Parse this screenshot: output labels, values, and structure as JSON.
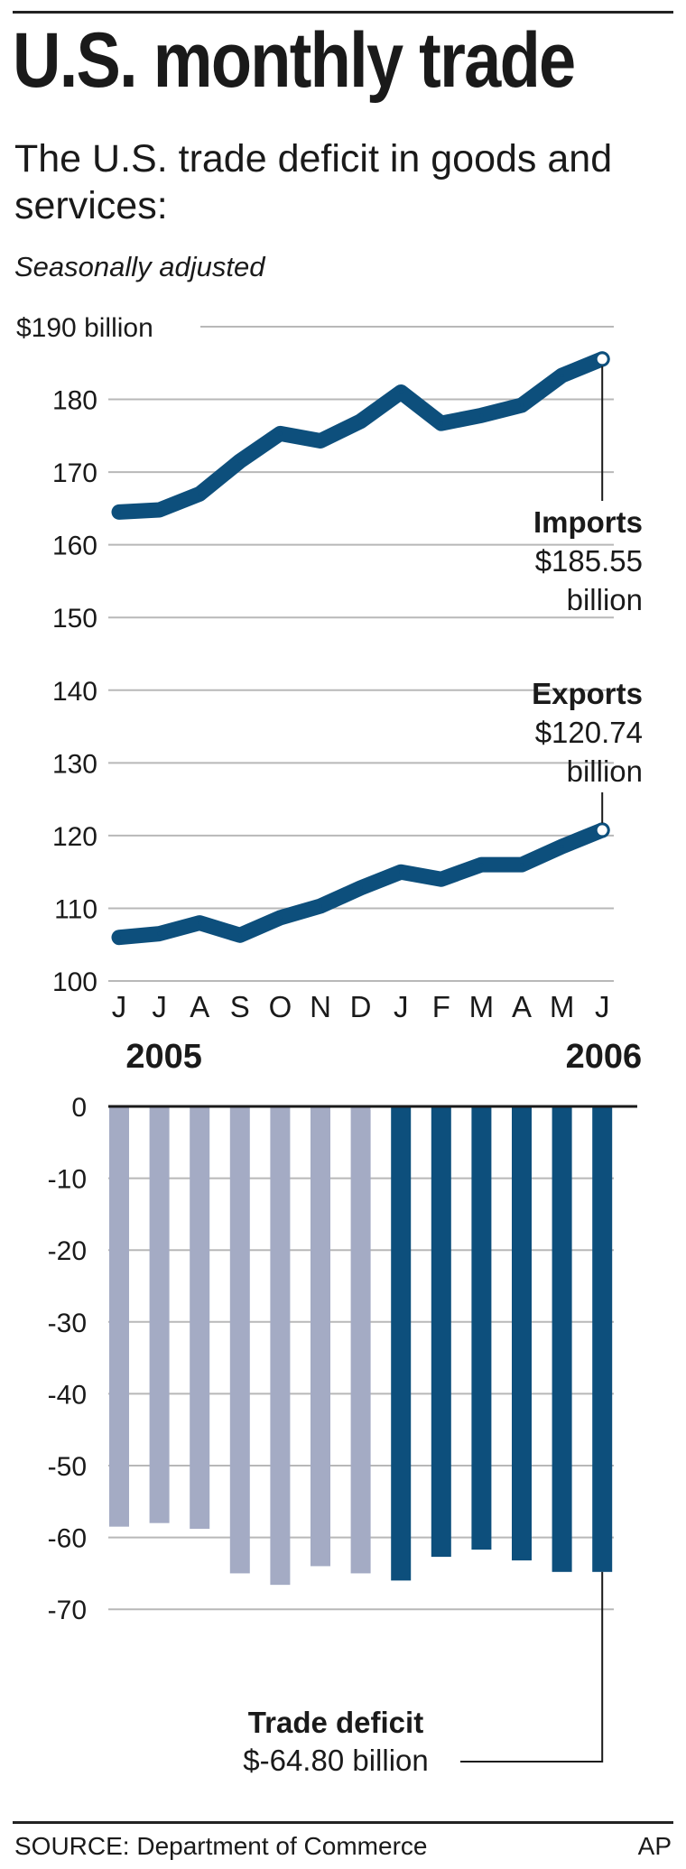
{
  "header": {
    "title": "U.S. monthly trade",
    "subtitle": "The U.S. trade deficit in goods and services:",
    "note": "Seasonally adjusted"
  },
  "chart_data": [
    {
      "type": "line",
      "title": "",
      "x": [
        "J",
        "J",
        "A",
        "S",
        "O",
        "N",
        "D",
        "J",
        "F",
        "M",
        "A",
        "M",
        "J"
      ],
      "years": [
        {
          "label": "2005",
          "at_index": 1
        },
        {
          "label": "2006",
          "at_index": 12
        }
      ],
      "ylim": [
        100,
        190
      ],
      "yticks": [
        {
          "value": 190,
          "label": "$190 billion"
        },
        {
          "value": 180,
          "label": "180"
        },
        {
          "value": 170,
          "label": "170"
        },
        {
          "value": 160,
          "label": "160"
        },
        {
          "value": 150,
          "label": "150"
        },
        {
          "value": 140,
          "label": "140"
        },
        {
          "value": 130,
          "label": "130"
        },
        {
          "value": 120,
          "label": "120"
        },
        {
          "value": 110,
          "label": "110"
        },
        {
          "value": 100,
          "label": "100"
        }
      ],
      "grid": true,
      "series": [
        {
          "name": "Imports",
          "values": [
            164.5,
            164.8,
            167.0,
            171.5,
            175.3,
            174.3,
            177.0,
            181.0,
            176.7,
            177.8,
            179.2,
            183.3,
            185.55
          ],
          "annotation": [
            "Imports",
            "$185.55",
            "billion"
          ]
        },
        {
          "name": "Exports",
          "values": [
            106.0,
            106.5,
            108.0,
            106.3,
            108.7,
            110.3,
            112.8,
            115.0,
            114.0,
            116.0,
            116.0,
            118.5,
            120.74
          ],
          "annotation": [
            "Exports",
            "$120.74",
            "billion"
          ]
        }
      ],
      "color": "#0d4f7c"
    },
    {
      "type": "bar",
      "title": "",
      "categories": [
        "J",
        "J",
        "A",
        "S",
        "O",
        "N",
        "D",
        "J",
        "F",
        "M",
        "A",
        "M",
        "J"
      ],
      "values": [
        -58.5,
        -58.0,
        -58.8,
        -65.0,
        -66.6,
        -64.0,
        -65.0,
        -66.0,
        -62.7,
        -61.7,
        -63.2,
        -64.8,
        -64.8
      ],
      "ylim": [
        -72,
        0
      ],
      "yticks": [
        0,
        -10,
        -20,
        -30,
        -40,
        -50,
        -60,
        -70
      ],
      "grid": true,
      "colors": {
        "2005": "#a4abc4",
        "2006": "#0d4f7c"
      },
      "highlight_from_index": 7,
      "annotation": [
        "Trade deficit",
        "$-64.80 billion"
      ]
    }
  ],
  "footer": {
    "source": "SOURCE: Department of Commerce",
    "credit": "AP"
  }
}
